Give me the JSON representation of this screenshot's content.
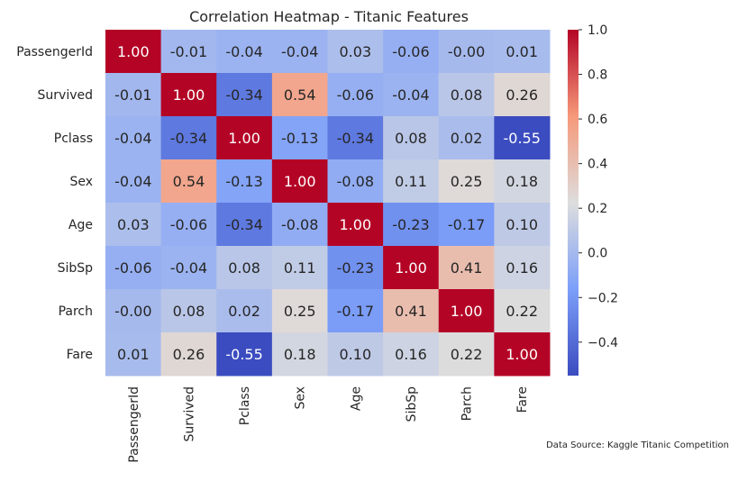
{
  "chart_data": {
    "type": "heatmap",
    "title": "Correlation Heatmap - Titanic Features",
    "row_labels": [
      "PassengerId",
      "Survived",
      "Pclass",
      "Sex",
      "Age",
      "SibSp",
      "Parch",
      "Fare"
    ],
    "col_labels": [
      "PassengerId",
      "Survived",
      "Pclass",
      "Sex",
      "Age",
      "SibSp",
      "Parch",
      "Fare"
    ],
    "values": [
      [
        1.0,
        -0.01,
        -0.04,
        -0.04,
        0.03,
        -0.06,
        -0.0,
        0.01
      ],
      [
        -0.01,
        1.0,
        -0.34,
        0.54,
        -0.06,
        -0.04,
        0.08,
        0.26
      ],
      [
        -0.04,
        -0.34,
        1.0,
        -0.13,
        -0.34,
        0.08,
        0.02,
        -0.55
      ],
      [
        -0.04,
        0.54,
        -0.13,
        1.0,
        -0.08,
        0.11,
        0.25,
        0.18
      ],
      [
        0.03,
        -0.06,
        -0.34,
        -0.08,
        1.0,
        -0.23,
        -0.17,
        0.1
      ],
      [
        -0.06,
        -0.04,
        0.08,
        0.11,
        -0.23,
        1.0,
        0.41,
        0.16
      ],
      [
        -0.0,
        0.08,
        0.02,
        0.25,
        -0.17,
        0.41,
        1.0,
        0.22
      ],
      [
        0.01,
        0.26,
        -0.55,
        0.18,
        0.1,
        0.16,
        0.22,
        1.0
      ]
    ],
    "labels": [
      [
        "1.00",
        "-0.01",
        "-0.04",
        "-0.04",
        "0.03",
        "-0.06",
        "-0.00",
        "0.01"
      ],
      [
        "-0.01",
        "1.00",
        "-0.34",
        "0.54",
        "-0.06",
        "-0.04",
        "0.08",
        "0.26"
      ],
      [
        "-0.04",
        "-0.34",
        "1.00",
        "-0.13",
        "-0.34",
        "0.08",
        "0.02",
        "-0.55"
      ],
      [
        "-0.04",
        "0.54",
        "-0.13",
        "1.00",
        "-0.08",
        "0.11",
        "0.25",
        "0.18"
      ],
      [
        "0.03",
        "-0.06",
        "-0.34",
        "-0.08",
        "1.00",
        "-0.23",
        "-0.17",
        "0.10"
      ],
      [
        "-0.06",
        "-0.04",
        "0.08",
        "0.11",
        "-0.23",
        "1.00",
        "0.41",
        "0.16"
      ],
      [
        "-0.00",
        "0.08",
        "0.02",
        "0.25",
        "-0.17",
        "0.41",
        "1.00",
        "0.22"
      ],
      [
        "0.01",
        "0.26",
        "-0.55",
        "0.18",
        "0.10",
        "0.16",
        "0.22",
        "1.00"
      ]
    ],
    "colormap": "coolwarm",
    "vmin": -0.55,
    "vmax": 1.0,
    "colorbar": {
      "ticks": [
        1.0,
        0.8,
        0.6,
        0.4,
        0.2,
        0.0,
        -0.2,
        -0.4
      ],
      "tick_labels": [
        "1.0",
        "0.8",
        "0.6",
        "0.4",
        "0.2",
        "0.0",
        "−0.2",
        "−0.4"
      ]
    },
    "legend": "colorbar-right",
    "grid": false
  },
  "annotation": "Data Source: Kaggle Titanic Competition"
}
